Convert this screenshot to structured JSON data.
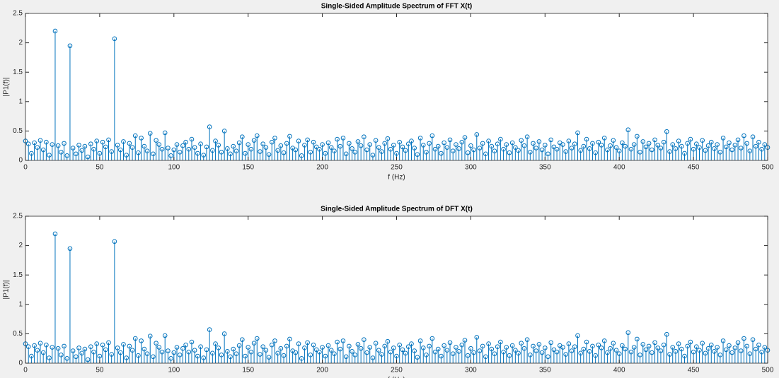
{
  "chart_data": [
    {
      "type": "stem",
      "title": "Single-Sided Amplitude Spectrum of FFT X(t)",
      "x_label": "f (Hz)",
      "y_label": "|P1(f)|",
      "color": "#0072bd",
      "x": [
        0,
        2,
        4,
        6,
        8,
        10,
        12,
        14,
        16,
        18,
        20,
        22,
        24,
        26,
        28,
        30,
        32,
        34,
        36,
        38,
        40,
        42,
        44,
        46,
        48,
        50,
        52,
        54,
        56,
        58,
        60,
        62,
        64,
        66,
        68,
        70,
        72,
        74,
        76,
        78,
        80,
        82,
        84,
        86,
        88,
        90,
        92,
        94,
        96,
        98,
        100,
        102,
        104,
        106,
        108,
        110,
        112,
        114,
        116,
        118,
        120,
        122,
        124,
        126,
        128,
        130,
        132,
        134,
        136,
        138,
        140,
        142,
        144,
        146,
        148,
        150,
        152,
        154,
        156,
        158,
        160,
        162,
        164,
        166,
        168,
        170,
        172,
        174,
        176,
        178,
        180,
        182,
        184,
        186,
        188,
        190,
        192,
        194,
        196,
        198,
        200,
        202,
        204,
        206,
        208,
        210,
        212,
        214,
        216,
        218,
        220,
        222,
        224,
        226,
        228,
        230,
        232,
        234,
        236,
        238,
        240,
        242,
        244,
        246,
        248,
        250,
        252,
        254,
        256,
        258,
        260,
        262,
        264,
        266,
        268,
        270,
        272,
        274,
        276,
        278,
        280,
        282,
        284,
        286,
        288,
        290,
        292,
        294,
        296,
        298,
        300,
        302,
        304,
        306,
        308,
        310,
        312,
        314,
        316,
        318,
        320,
        322,
        324,
        326,
        328,
        330,
        332,
        334,
        336,
        338,
        340,
        342,
        344,
        346,
        348,
        350,
        352,
        354,
        356,
        358,
        360,
        362,
        364,
        366,
        368,
        370,
        372,
        374,
        376,
        378,
        380,
        382,
        384,
        386,
        388,
        390,
        392,
        394,
        396,
        398,
        400,
        402,
        404,
        406,
        408,
        410,
        412,
        414,
        416,
        418,
        420,
        422,
        424,
        426,
        428,
        430,
        432,
        434,
        436,
        438,
        440,
        442,
        444,
        446,
        448,
        450,
        452,
        454,
        456,
        458,
        460,
        462,
        464,
        466,
        468,
        470,
        472,
        474,
        476,
        478,
        480,
        482,
        484,
        486,
        488,
        490,
        492,
        494,
        496,
        498,
        500
      ],
      "values": [
        0.33,
        0.28,
        0.12,
        0.3,
        0.22,
        0.34,
        0.18,
        0.31,
        0.09,
        0.27,
        2.2,
        0.25,
        0.14,
        0.29,
        0.08,
        1.95,
        0.21,
        0.11,
        0.26,
        0.17,
        0.24,
        0.06,
        0.28,
        0.19,
        0.33,
        0.12,
        0.31,
        0.23,
        0.35,
        0.15,
        2.07,
        0.26,
        0.18,
        0.32,
        0.09,
        0.29,
        0.22,
        0.42,
        0.13,
        0.38,
        0.24,
        0.16,
        0.46,
        0.11,
        0.34,
        0.27,
        0.19,
        0.47,
        0.21,
        0.08,
        0.18,
        0.27,
        0.14,
        0.25,
        0.31,
        0.19,
        0.36,
        0.22,
        0.12,
        0.28,
        0.09,
        0.23,
        0.57,
        0.17,
        0.33,
        0.26,
        0.14,
        0.5,
        0.2,
        0.11,
        0.24,
        0.16,
        0.3,
        0.4,
        0.12,
        0.27,
        0.19,
        0.34,
        0.42,
        0.15,
        0.28,
        0.22,
        0.1,
        0.31,
        0.38,
        0.17,
        0.25,
        0.13,
        0.29,
        0.41,
        0.21,
        0.18,
        0.33,
        0.08,
        0.26,
        0.35,
        0.14,
        0.31,
        0.23,
        0.19,
        0.27,
        0.12,
        0.3,
        0.22,
        0.16,
        0.36,
        0.24,
        0.38,
        0.11,
        0.29,
        0.2,
        0.14,
        0.32,
        0.25,
        0.4,
        0.18,
        0.27,
        0.09,
        0.34,
        0.22,
        0.15,
        0.29,
        0.37,
        0.19,
        0.26,
        0.12,
        0.31,
        0.23,
        0.17,
        0.28,
        0.33,
        0.21,
        0.1,
        0.38,
        0.26,
        0.14,
        0.29,
        0.42,
        0.19,
        0.24,
        0.12,
        0.3,
        0.22,
        0.35,
        0.16,
        0.27,
        0.2,
        0.31,
        0.39,
        0.13,
        0.25,
        0.18,
        0.44,
        0.21,
        0.29,
        0.11,
        0.33,
        0.24,
        0.16,
        0.28,
        0.36,
        0.19,
        0.27,
        0.13,
        0.3,
        0.22,
        0.17,
        0.34,
        0.25,
        0.4,
        0.14,
        0.29,
        0.21,
        0.32,
        0.18,
        0.26,
        0.11,
        0.35,
        0.23,
        0.19,
        0.3,
        0.27,
        0.15,
        0.33,
        0.21,
        0.28,
        0.47,
        0.17,
        0.24,
        0.36,
        0.2,
        0.29,
        0.13,
        0.31,
        0.26,
        0.38,
        0.18,
        0.25,
        0.34,
        0.22,
        0.16,
        0.3,
        0.24,
        0.52,
        0.19,
        0.27,
        0.41,
        0.14,
        0.32,
        0.23,
        0.29,
        0.18,
        0.35,
        0.26,
        0.21,
        0.31,
        0.49,
        0.15,
        0.27,
        0.2,
        0.33,
        0.24,
        0.12,
        0.29,
        0.36,
        0.19,
        0.28,
        0.22,
        0.34,
        0.17,
        0.25,
        0.31,
        0.2,
        0.27,
        0.14,
        0.38,
        0.23,
        0.3,
        0.18,
        0.26,
        0.35,
        0.21,
        0.42,
        0.29,
        0.16,
        0.4,
        0.24,
        0.31,
        0.19,
        0.27,
        0.22
      ],
      "xlim": [
        0,
        500
      ],
      "xticks": [
        0,
        50,
        100,
        150,
        200,
        250,
        300,
        350,
        400,
        450,
        500
      ],
      "ylim": [
        0,
        2.5
      ],
      "yticks": [
        0,
        0.5,
        1,
        1.5,
        2,
        2.5
      ]
    },
    {
      "type": "stem",
      "title": "Single-Sided Amplitude Spectrum of DFT X(t)",
      "x_label": "f (Hz)",
      "y_label": "|P1(f)|",
      "color": "#0072bd",
      "x": [
        0,
        2,
        4,
        6,
        8,
        10,
        12,
        14,
        16,
        18,
        20,
        22,
        24,
        26,
        28,
        30,
        32,
        34,
        36,
        38,
        40,
        42,
        44,
        46,
        48,
        50,
        52,
        54,
        56,
        58,
        60,
        62,
        64,
        66,
        68,
        70,
        72,
        74,
        76,
        78,
        80,
        82,
        84,
        86,
        88,
        90,
        92,
        94,
        96,
        98,
        100,
        102,
        104,
        106,
        108,
        110,
        112,
        114,
        116,
        118,
        120,
        122,
        124,
        126,
        128,
        130,
        132,
        134,
        136,
        138,
        140,
        142,
        144,
        146,
        148,
        150,
        152,
        154,
        156,
        158,
        160,
        162,
        164,
        166,
        168,
        170,
        172,
        174,
        176,
        178,
        180,
        182,
        184,
        186,
        188,
        190,
        192,
        194,
        196,
        198,
        200,
        202,
        204,
        206,
        208,
        210,
        212,
        214,
        216,
        218,
        220,
        222,
        224,
        226,
        228,
        230,
        232,
        234,
        236,
        238,
        240,
        242,
        244,
        246,
        248,
        250,
        252,
        254,
        256,
        258,
        260,
        262,
        264,
        266,
        268,
        270,
        272,
        274,
        276,
        278,
        280,
        282,
        284,
        286,
        288,
        290,
        292,
        294,
        296,
        298,
        300,
        302,
        304,
        306,
        308,
        310,
        312,
        314,
        316,
        318,
        320,
        322,
        324,
        326,
        328,
        330,
        332,
        334,
        336,
        338,
        340,
        342,
        344,
        346,
        348,
        350,
        352,
        354,
        356,
        358,
        360,
        362,
        364,
        366,
        368,
        370,
        372,
        374,
        376,
        378,
        380,
        382,
        384,
        386,
        388,
        390,
        392,
        394,
        396,
        398,
        400,
        402,
        404,
        406,
        408,
        410,
        412,
        414,
        416,
        418,
        420,
        422,
        424,
        426,
        428,
        430,
        432,
        434,
        436,
        438,
        440,
        442,
        444,
        446,
        448,
        450,
        452,
        454,
        456,
        458,
        460,
        462,
        464,
        466,
        468,
        470,
        472,
        474,
        476,
        478,
        480,
        482,
        484,
        486,
        488,
        490,
        492,
        494,
        496,
        498,
        500
      ],
      "values": [
        0.33,
        0.28,
        0.12,
        0.3,
        0.22,
        0.34,
        0.18,
        0.31,
        0.09,
        0.27,
        2.2,
        0.25,
        0.14,
        0.29,
        0.08,
        1.95,
        0.21,
        0.11,
        0.26,
        0.17,
        0.24,
        0.06,
        0.28,
        0.19,
        0.33,
        0.12,
        0.31,
        0.23,
        0.35,
        0.15,
        2.07,
        0.26,
        0.18,
        0.32,
        0.09,
        0.29,
        0.22,
        0.42,
        0.13,
        0.38,
        0.24,
        0.16,
        0.46,
        0.11,
        0.34,
        0.27,
        0.19,
        0.47,
        0.21,
        0.08,
        0.18,
        0.27,
        0.14,
        0.25,
        0.31,
        0.19,
        0.36,
        0.22,
        0.12,
        0.28,
        0.09,
        0.23,
        0.57,
        0.17,
        0.33,
        0.26,
        0.14,
        0.5,
        0.2,
        0.11,
        0.24,
        0.16,
        0.3,
        0.4,
        0.12,
        0.27,
        0.19,
        0.34,
        0.42,
        0.15,
        0.28,
        0.22,
        0.1,
        0.31,
        0.38,
        0.17,
        0.25,
        0.13,
        0.29,
        0.41,
        0.21,
        0.18,
        0.33,
        0.08,
        0.26,
        0.35,
        0.14,
        0.31,
        0.23,
        0.19,
        0.27,
        0.12,
        0.3,
        0.22,
        0.16,
        0.36,
        0.24,
        0.38,
        0.11,
        0.29,
        0.2,
        0.14,
        0.32,
        0.25,
        0.4,
        0.18,
        0.27,
        0.09,
        0.34,
        0.22,
        0.15,
        0.29,
        0.37,
        0.19,
        0.26,
        0.12,
        0.31,
        0.23,
        0.17,
        0.28,
        0.33,
        0.21,
        0.1,
        0.38,
        0.26,
        0.14,
        0.29,
        0.42,
        0.19,
        0.24,
        0.12,
        0.3,
        0.22,
        0.35,
        0.16,
        0.27,
        0.2,
        0.31,
        0.39,
        0.13,
        0.25,
        0.18,
        0.44,
        0.21,
        0.29,
        0.11,
        0.33,
        0.24,
        0.16,
        0.28,
        0.36,
        0.19,
        0.27,
        0.13,
        0.3,
        0.22,
        0.17,
        0.34,
        0.25,
        0.4,
        0.14,
        0.29,
        0.21,
        0.32,
        0.18,
        0.26,
        0.11,
        0.35,
        0.23,
        0.19,
        0.3,
        0.27,
        0.15,
        0.33,
        0.21,
        0.28,
        0.47,
        0.17,
        0.24,
        0.36,
        0.2,
        0.29,
        0.13,
        0.31,
        0.26,
        0.38,
        0.18,
        0.25,
        0.34,
        0.22,
        0.16,
        0.3,
        0.24,
        0.52,
        0.19,
        0.27,
        0.41,
        0.14,
        0.32,
        0.23,
        0.29,
        0.18,
        0.35,
        0.26,
        0.21,
        0.31,
        0.49,
        0.15,
        0.27,
        0.2,
        0.33,
        0.24,
        0.12,
        0.29,
        0.36,
        0.19,
        0.28,
        0.22,
        0.34,
        0.17,
        0.25,
        0.31,
        0.2,
        0.27,
        0.14,
        0.38,
        0.23,
        0.3,
        0.18,
        0.26,
        0.35,
        0.21,
        0.42,
        0.29,
        0.16,
        0.4,
        0.24,
        0.31,
        0.19,
        0.27,
        0.22
      ],
      "xlim": [
        0,
        500
      ],
      "xticks": [
        0,
        50,
        100,
        150,
        200,
        250,
        300,
        350,
        400,
        450,
        500
      ],
      "ylim": [
        0,
        2.5
      ],
      "yticks": [
        0,
        0.5,
        1,
        1.5,
        2,
        2.5
      ]
    }
  ]
}
